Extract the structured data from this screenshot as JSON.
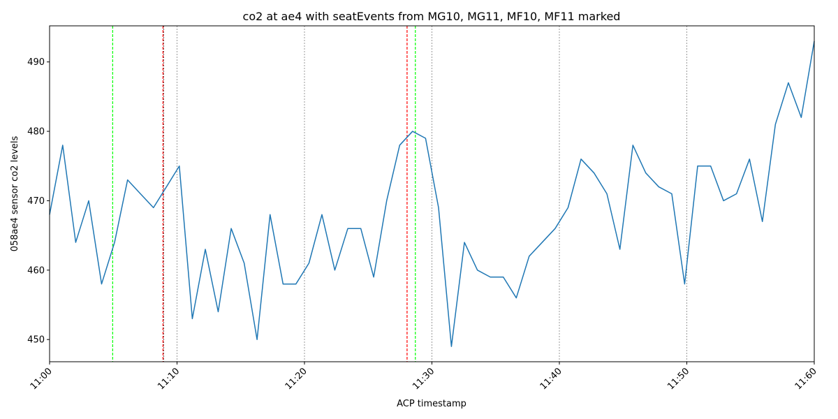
{
  "chart_data": {
    "type": "line",
    "title": "co2 at ae4 with seatEvents from MG10, MG11, MF10, MF11 marked",
    "xlabel": "ACP timestamp",
    "ylabel": "058ae4 sensor co2 levels",
    "xlim_minutes": [
      0,
      60
    ],
    "ylim": [
      446.8,
      495.2
    ],
    "x_ticks": [
      {
        "minute": 0,
        "label": "11:00"
      },
      {
        "minute": 10,
        "label": "11:10"
      },
      {
        "minute": 20,
        "label": "11:20"
      },
      {
        "minute": 30,
        "label": "11:30"
      },
      {
        "minute": 40,
        "label": "11:40"
      },
      {
        "minute": 50,
        "label": "11:50"
      },
      {
        "minute": 60,
        "label": "11:60"
      }
    ],
    "y_ticks": [
      {
        "value": 450,
        "label": "450"
      },
      {
        "value": 460,
        "label": "460"
      },
      {
        "value": 470,
        "label": "470"
      },
      {
        "value": 480,
        "label": "480"
      },
      {
        "value": 490,
        "label": "490"
      }
    ],
    "grid": "vertical dashed gray at x ticks",
    "line_color": "#1f77b4",
    "series": [
      {
        "x": [
          0,
          1.03,
          2.05,
          3.07,
          4.08,
          5.1,
          6.12,
          7.13,
          8.15,
          9.17,
          10.18,
          11.2,
          12.22,
          13.23,
          14.25,
          15.27,
          16.28,
          17.3,
          18.32,
          19.33,
          20.35,
          21.37,
          22.38,
          23.4,
          24.42,
          25.43,
          26.45,
          27.47,
          28.48,
          29.5,
          30.52,
          31.53,
          32.55,
          33.57,
          34.58,
          35.6,
          36.62,
          37.63,
          38.65,
          39.67,
          40.68,
          41.7,
          42.72,
          43.73,
          44.75,
          45.77,
          46.78,
          47.8,
          48.82,
          49.83,
          50.85,
          51.87,
          52.88,
          53.9,
          54.92,
          55.93,
          56.95,
          57.97,
          58.98,
          60
        ],
        "values": [
          468,
          478,
          464,
          470,
          458,
          464,
          473,
          471,
          469,
          472,
          475,
          453,
          463,
          454,
          466,
          461,
          450,
          468,
          458,
          458,
          461,
          468,
          460,
          466,
          466,
          459,
          470,
          478,
          480,
          479,
          469,
          449,
          464,
          460,
          459,
          459,
          456,
          462,
          464,
          466,
          469,
          476,
          474,
          471,
          463,
          478,
          474,
          472,
          471,
          458,
          475,
          475,
          470,
          471,
          476,
          467,
          481,
          487,
          482,
          493
        ]
      }
    ],
    "event_markers": [
      {
        "minute": 4.95,
        "color": "#00ff00"
      },
      {
        "minute": 8.9,
        "color": "#ff0000"
      },
      {
        "minute": 8.95,
        "color": "#000000"
      },
      {
        "minute": 28.05,
        "color": "#ff0000"
      },
      {
        "minute": 28.7,
        "color": "#00ff00"
      }
    ]
  }
}
